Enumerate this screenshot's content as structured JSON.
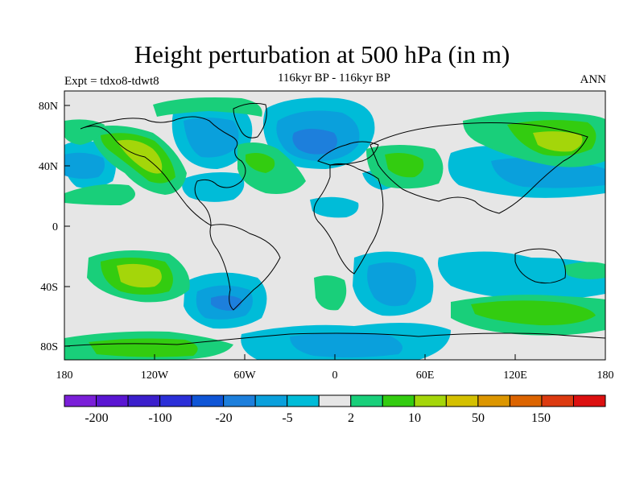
{
  "title": "Height perturbation at 500 hPa (in m)",
  "subtitle": "116kyr BP - 116kyr BP",
  "experiment": "Expt = tdxo8-tdwt8",
  "season": "ANN",
  "axes": {
    "lat_ticks": [
      "80N",
      "40N",
      "0",
      "40S",
      "80S"
    ],
    "lon_ticks": [
      "180",
      "120W",
      "60W",
      "0",
      "60E",
      "120E",
      "180"
    ]
  },
  "colorbar": {
    "colors": [
      "#7a1fd8",
      "#5a16d2",
      "#3b1fcc",
      "#2b2fd8",
      "#0f55d6",
      "#1d7fdc",
      "#0aa0dc",
      "#00bcd8",
      "#e6e6e6",
      "#19cf7a",
      "#33cc10",
      "#a4d60a",
      "#d4c000",
      "#dc9600",
      "#dc6400",
      "#dc3a10",
      "#dc1010"
    ],
    "labels": [
      "-200",
      "-100",
      "-20",
      "-5",
      "2",
      "10",
      "50",
      "150"
    ]
  },
  "palette": {
    "neutral": "#e6e6e6",
    "neg_light": "#00bcd8",
    "neg_mid": "#0aa0dc",
    "neg_strong": "#1d7fdc",
    "neg_stronger": "#0f55d6",
    "pos_light": "#19cf7a",
    "pos_mid": "#33cc10",
    "pos_strong": "#a4d60a",
    "coast": "#000000"
  }
}
